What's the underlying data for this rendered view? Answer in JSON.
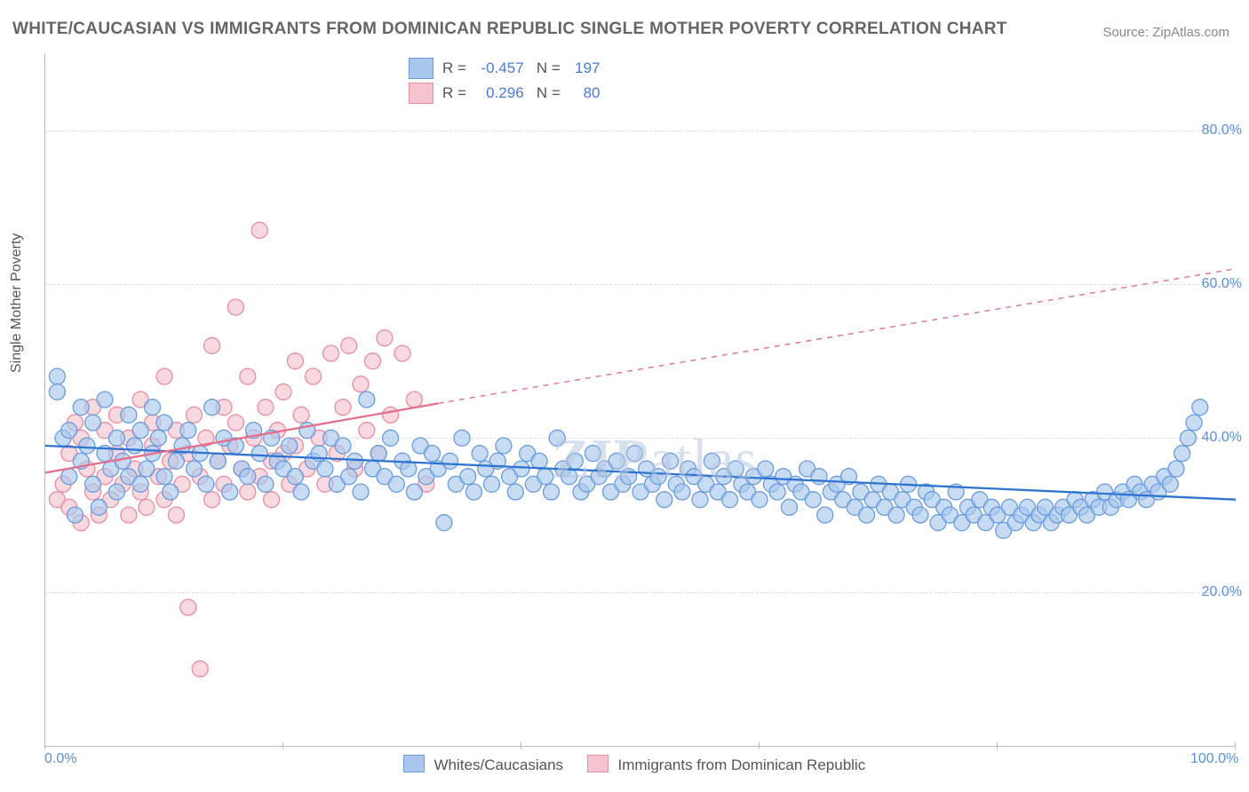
{
  "title": "WHITE/CAUCASIAN VS IMMIGRANTS FROM DOMINICAN REPUBLIC SINGLE MOTHER POVERTY CORRELATION CHART",
  "source": "Source: ZipAtlas.com",
  "watermark": "ZIPatlas",
  "ylabel": "Single Mother Poverty",
  "chart": {
    "type": "scatter",
    "background_color": "#ffffff",
    "grid_color": "#dddddd",
    "axis_color": "#bbbbbb",
    "xlim": [
      0,
      100
    ],
    "ylim": [
      0,
      90
    ],
    "x_ticks": [
      0,
      20,
      40,
      60,
      80,
      100
    ],
    "x_tick_labels": [
      "0.0%",
      "",
      "",
      "",
      "",
      "100.0%"
    ],
    "y_ticks": [
      20,
      40,
      60,
      80
    ],
    "y_tick_labels": [
      "20.0%",
      "40.0%",
      "60.0%",
      "80.0%"
    ],
    "tick_color": "#5b8fd6",
    "tick_fontsize": 16,
    "label_fontsize": 16,
    "title_fontsize": 19,
    "marker_radius": 9,
    "marker_stroke_width": 1.3,
    "line_width": 2.3,
    "series": [
      {
        "name": "Whites/Caucasians",
        "fill_color": "#a9c7ec",
        "stroke_color": "#6a9cde",
        "fill_opacity": 0.65,
        "R": "-0.457",
        "N": "197",
        "trend": {
          "x1": 0,
          "y1": 39,
          "x2": 100,
          "y2": 32,
          "dash_from_x": 101,
          "color": "#2f74d0"
        },
        "points": [
          [
            1,
            48
          ],
          [
            1,
            46
          ],
          [
            1.5,
            40
          ],
          [
            2,
            35
          ],
          [
            2,
            41
          ],
          [
            2.5,
            30
          ],
          [
            3,
            44
          ],
          [
            3,
            37
          ],
          [
            3.5,
            39
          ],
          [
            4,
            42
          ],
          [
            4,
            34
          ],
          [
            4.5,
            31
          ],
          [
            5,
            45
          ],
          [
            5,
            38
          ],
          [
            5.5,
            36
          ],
          [
            6,
            40
          ],
          [
            6,
            33
          ],
          [
            6.5,
            37
          ],
          [
            7,
            43
          ],
          [
            7,
            35
          ],
          [
            7.5,
            39
          ],
          [
            8,
            41
          ],
          [
            8,
            34
          ],
          [
            8.5,
            36
          ],
          [
            9,
            44
          ],
          [
            9,
            38
          ],
          [
            9.5,
            40
          ],
          [
            10,
            35
          ],
          [
            10,
            42
          ],
          [
            10.5,
            33
          ],
          [
            11,
            37
          ],
          [
            11.5,
            39
          ],
          [
            12,
            41
          ],
          [
            12.5,
            36
          ],
          [
            13,
            38
          ],
          [
            13.5,
            34
          ],
          [
            14,
            44
          ],
          [
            14.5,
            37
          ],
          [
            15,
            40
          ],
          [
            15.5,
            33
          ],
          [
            16,
            39
          ],
          [
            16.5,
            36
          ],
          [
            17,
            35
          ],
          [
            17.5,
            41
          ],
          [
            18,
            38
          ],
          [
            18.5,
            34
          ],
          [
            19,
            40
          ],
          [
            19.5,
            37
          ],
          [
            20,
            36
          ],
          [
            20.5,
            39
          ],
          [
            21,
            35
          ],
          [
            21.5,
            33
          ],
          [
            22,
            41
          ],
          [
            22.5,
            37
          ],
          [
            23,
            38
          ],
          [
            23.5,
            36
          ],
          [
            24,
            40
          ],
          [
            24.5,
            34
          ],
          [
            25,
            39
          ],
          [
            25.5,
            35
          ],
          [
            26,
            37
          ],
          [
            26.5,
            33
          ],
          [
            27,
            45
          ],
          [
            27.5,
            36
          ],
          [
            28,
            38
          ],
          [
            28.5,
            35
          ],
          [
            29,
            40
          ],
          [
            29.5,
            34
          ],
          [
            30,
            37
          ],
          [
            30.5,
            36
          ],
          [
            31,
            33
          ],
          [
            31.5,
            39
          ],
          [
            32,
            35
          ],
          [
            32.5,
            38
          ],
          [
            33,
            36
          ],
          [
            33.5,
            29
          ],
          [
            34,
            37
          ],
          [
            34.5,
            34
          ],
          [
            35,
            40
          ],
          [
            35.5,
            35
          ],
          [
            36,
            33
          ],
          [
            36.5,
            38
          ],
          [
            37,
            36
          ],
          [
            37.5,
            34
          ],
          [
            38,
            37
          ],
          [
            38.5,
            39
          ],
          [
            39,
            35
          ],
          [
            39.5,
            33
          ],
          [
            40,
            36
          ],
          [
            40.5,
            38
          ],
          [
            41,
            34
          ],
          [
            41.5,
            37
          ],
          [
            42,
            35
          ],
          [
            42.5,
            33
          ],
          [
            43,
            40
          ],
          [
            43.5,
            36
          ],
          [
            44,
            35
          ],
          [
            44.5,
            37
          ],
          [
            45,
            33
          ],
          [
            45.5,
            34
          ],
          [
            46,
            38
          ],
          [
            46.5,
            35
          ],
          [
            47,
            36
          ],
          [
            47.5,
            33
          ],
          [
            48,
            37
          ],
          [
            48.5,
            34
          ],
          [
            49,
            35
          ],
          [
            49.5,
            38
          ],
          [
            50,
            33
          ],
          [
            50.5,
            36
          ],
          [
            51,
            34
          ],
          [
            51.5,
            35
          ],
          [
            52,
            32
          ],
          [
            52.5,
            37
          ],
          [
            53,
            34
          ],
          [
            53.5,
            33
          ],
          [
            54,
            36
          ],
          [
            54.5,
            35
          ],
          [
            55,
            32
          ],
          [
            55.5,
            34
          ],
          [
            56,
            37
          ],
          [
            56.5,
            33
          ],
          [
            57,
            35
          ],
          [
            57.5,
            32
          ],
          [
            58,
            36
          ],
          [
            58.5,
            34
          ],
          [
            59,
            33
          ],
          [
            59.5,
            35
          ],
          [
            60,
            32
          ],
          [
            60.5,
            36
          ],
          [
            61,
            34
          ],
          [
            61.5,
            33
          ],
          [
            62,
            35
          ],
          [
            62.5,
            31
          ],
          [
            63,
            34
          ],
          [
            63.5,
            33
          ],
          [
            64,
            36
          ],
          [
            64.5,
            32
          ],
          [
            65,
            35
          ],
          [
            65.5,
            30
          ],
          [
            66,
            33
          ],
          [
            66.5,
            34
          ],
          [
            67,
            32
          ],
          [
            67.5,
            35
          ],
          [
            68,
            31
          ],
          [
            68.5,
            33
          ],
          [
            69,
            30
          ],
          [
            69.5,
            32
          ],
          [
            70,
            34
          ],
          [
            70.5,
            31
          ],
          [
            71,
            33
          ],
          [
            71.5,
            30
          ],
          [
            72,
            32
          ],
          [
            72.5,
            34
          ],
          [
            73,
            31
          ],
          [
            73.5,
            30
          ],
          [
            74,
            33
          ],
          [
            74.5,
            32
          ],
          [
            75,
            29
          ],
          [
            75.5,
            31
          ],
          [
            76,
            30
          ],
          [
            76.5,
            33
          ],
          [
            77,
            29
          ],
          [
            77.5,
            31
          ],
          [
            78,
            30
          ],
          [
            78.5,
            32
          ],
          [
            79,
            29
          ],
          [
            79.5,
            31
          ],
          [
            80,
            30
          ],
          [
            80.5,
            28
          ],
          [
            81,
            31
          ],
          [
            81.5,
            29
          ],
          [
            82,
            30
          ],
          [
            82.5,
            31
          ],
          [
            83,
            29
          ],
          [
            83.5,
            30
          ],
          [
            84,
            31
          ],
          [
            84.5,
            29
          ],
          [
            85,
            30
          ],
          [
            85.5,
            31
          ],
          [
            86,
            30
          ],
          [
            86.5,
            32
          ],
          [
            87,
            31
          ],
          [
            87.5,
            30
          ],
          [
            88,
            32
          ],
          [
            88.5,
            31
          ],
          [
            89,
            33
          ],
          [
            89.5,
            31
          ],
          [
            90,
            32
          ],
          [
            90.5,
            33
          ],
          [
            91,
            32
          ],
          [
            91.5,
            34
          ],
          [
            92,
            33
          ],
          [
            92.5,
            32
          ],
          [
            93,
            34
          ],
          [
            93.5,
            33
          ],
          [
            94,
            35
          ],
          [
            94.5,
            34
          ],
          [
            95,
            36
          ],
          [
            95.5,
            38
          ],
          [
            96,
            40
          ],
          [
            96.5,
            42
          ],
          [
            97,
            44
          ]
        ]
      },
      {
        "name": "Immigrants from Dominican Republic",
        "fill_color": "#f5c4cf",
        "stroke_color": "#e88ca3",
        "fill_opacity": 0.65,
        "R": "0.296",
        "N": "80",
        "trend": {
          "x1": 0,
          "y1": 35.5,
          "x2": 33,
          "y2": 44.5,
          "dash_from_x": 33,
          "dash_x2": 100,
          "dash_y2": 62,
          "color": "#e36f8d"
        },
        "points": [
          [
            1,
            32
          ],
          [
            1.5,
            34
          ],
          [
            2,
            38
          ],
          [
            2,
            31
          ],
          [
            2.5,
            42
          ],
          [
            3,
            29
          ],
          [
            3,
            40
          ],
          [
            3.5,
            36
          ],
          [
            4,
            33
          ],
          [
            4,
            44
          ],
          [
            4.5,
            30
          ],
          [
            5,
            41
          ],
          [
            5,
            35
          ],
          [
            5.5,
            32
          ],
          [
            6,
            38
          ],
          [
            6,
            43
          ],
          [
            6.5,
            34
          ],
          [
            7,
            30
          ],
          [
            7,
            40
          ],
          [
            7.5,
            36
          ],
          [
            8,
            33
          ],
          [
            8,
            45
          ],
          [
            8.5,
            31
          ],
          [
            9,
            39
          ],
          [
            9,
            42
          ],
          [
            9.5,
            35
          ],
          [
            10,
            32
          ],
          [
            10,
            48
          ],
          [
            10.5,
            37
          ],
          [
            11,
            30
          ],
          [
            11,
            41
          ],
          [
            11.5,
            34
          ],
          [
            12,
            38
          ],
          [
            12,
            18
          ],
          [
            12.5,
            43
          ],
          [
            13,
            35
          ],
          [
            13,
            10
          ],
          [
            13.5,
            40
          ],
          [
            14,
            32
          ],
          [
            14,
            52
          ],
          [
            14.5,
            37
          ],
          [
            15,
            44
          ],
          [
            15,
            34
          ],
          [
            15.5,
            39
          ],
          [
            16,
            57
          ],
          [
            16,
            42
          ],
          [
            16.5,
            36
          ],
          [
            17,
            33
          ],
          [
            17,
            48
          ],
          [
            17.5,
            40
          ],
          [
            18,
            35
          ],
          [
            18,
            67
          ],
          [
            18.5,
            44
          ],
          [
            19,
            37
          ],
          [
            19,
            32
          ],
          [
            19.5,
            41
          ],
          [
            20,
            38
          ],
          [
            20,
            46
          ],
          [
            20.5,
            34
          ],
          [
            21,
            50
          ],
          [
            21,
            39
          ],
          [
            21.5,
            43
          ],
          [
            22,
            36
          ],
          [
            22.5,
            48
          ],
          [
            23,
            40
          ],
          [
            23.5,
            34
          ],
          [
            24,
            51
          ],
          [
            24.5,
            38
          ],
          [
            25,
            44
          ],
          [
            25.5,
            52
          ],
          [
            26,
            36
          ],
          [
            26.5,
            47
          ],
          [
            27,
            41
          ],
          [
            27.5,
            50
          ],
          [
            28,
            38
          ],
          [
            28.5,
            53
          ],
          [
            29,
            43
          ],
          [
            30,
            51
          ],
          [
            31,
            45
          ],
          [
            32,
            34
          ]
        ]
      }
    ]
  },
  "bottom_legend": {
    "items": [
      {
        "label": "Whites/Caucasians",
        "fill": "#a9c7ec",
        "stroke": "#6a9cde"
      },
      {
        "label": "Immigrants from Dominican Republic",
        "fill": "#f5c4cf",
        "stroke": "#e88ca3"
      }
    ]
  }
}
